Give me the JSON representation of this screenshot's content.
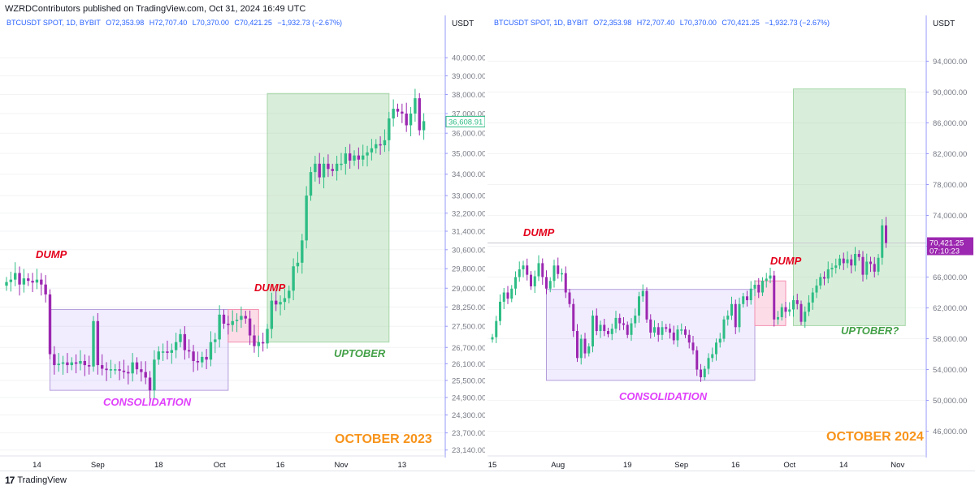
{
  "header": {
    "published": "WZRDContributors published on TradingView.com, Oct 31, 2024 16:49 UTC"
  },
  "footer": {
    "brand": "TradingView",
    "logo_mark": "17"
  },
  "colors": {
    "up": "#22ab94",
    "up_candle": "#2ebd85",
    "down": "#9c27b0",
    "purple_label": "#e040fb",
    "red_label": "#e3001b",
    "green_label": "#43a047",
    "orange_label": "#f7931a",
    "axis_text": "#787b86",
    "ticker_text": "#2962ff"
  },
  "chart_data": [
    {
      "type": "candlestick",
      "symbol_line": "BTCUSDT SPOT, 1D, BYBIT",
      "ohlc": {
        "o": "O72,353.98",
        "h": "H72,707.40",
        "l": "L70,370.00",
        "c": "C70,421.25",
        "chg": "−1,932.73 (−2.67%)"
      },
      "unit": "USDT",
      "y_ticks": [
        "40,000.00",
        "39,000.00",
        "38,000.00",
        "37,000.00",
        "36,000.00",
        "35,000.00",
        "34,000.00",
        "33,000.00",
        "32,200.00",
        "31,400.00",
        "30,600.00",
        "29,800.00",
        "29,000.00",
        "28,250.00",
        "27,500.00",
        "26,700.00",
        "26,100.00",
        "25,500.00",
        "24,900.00",
        "24,300.00",
        "23,700.00",
        "23,140.00"
      ],
      "y_tick_values": [
        40000,
        39000,
        38000,
        37000,
        36000,
        35000,
        34000,
        33000,
        32200,
        31400,
        30600,
        29800,
        29000,
        28250,
        27500,
        26700,
        26100,
        25500,
        24900,
        24300,
        23700,
        23140
      ],
      "ylim": [
        22950,
        41200
      ],
      "scale": "log",
      "x_ticks": [
        "14",
        "Sep",
        "18",
        "Oct",
        "16",
        "Nov",
        "13"
      ],
      "x_tick_index": [
        7,
        21,
        35,
        49,
        63,
        77,
        91
      ],
      "n_bars": 97,
      "last_price": "36,608.91",
      "last_value": 36608.91,
      "closes": [
        29250,
        29350,
        29620,
        29150,
        29400,
        29300,
        29230,
        29350,
        29150,
        28750,
        26450,
        26050,
        26100,
        26150,
        26050,
        26150,
        26100,
        26200,
        26050,
        26000,
        27700,
        26050,
        25920,
        25870,
        25900,
        25900,
        25850,
        25800,
        25750,
        26150,
        25900,
        25800,
        25600,
        25150,
        26250,
        26550,
        26550,
        26500,
        26600,
        26900,
        27200,
        26600,
        26550,
        26200,
        26150,
        26350,
        26250,
        26900,
        27000,
        27950,
        27600,
        27550,
        27700,
        27750,
        27900,
        27800,
        27150,
        26750,
        26900,
        26850,
        27400,
        28500,
        28350,
        28450,
        28600,
        28900,
        29900,
        30050,
        31000,
        33000,
        34100,
        34500,
        33850,
        34500,
        34250,
        34150,
        34500,
        34500,
        35000,
        34650,
        34900,
        34700,
        34900,
        35050,
        35250,
        35450,
        35400,
        35650,
        36750,
        37250,
        37100,
        37000,
        36400,
        37000,
        37800,
        36150,
        36608.91
      ],
      "regions": [
        {
          "name": "consolidation",
          "i0": 10,
          "i1": 51,
          "v0": 28150,
          "v1": 25150
        },
        {
          "name": "dump",
          "i0": 51,
          "i1": 58,
          "v0": 28150,
          "v1": 26900
        },
        {
          "name": "uptober",
          "i0": 60,
          "i1": 88,
          "v0": 38050,
          "v1": 26900
        }
      ],
      "labels": {
        "dump1": "DUMP",
        "dump2": "DUMP",
        "consolidation": "CONSOLIDATION",
        "uptober": "UPTOBER",
        "period": "OCTOBER 2023"
      }
    },
    {
      "type": "candlestick",
      "symbol_line": "BTCUSDT SPOT, 1D, BYBIT",
      "ohlc": {
        "o": "O72,353.98",
        "h": "H72,707.40",
        "l": "L70,370.00",
        "c": "C70,421.25",
        "chg": "−1,932.73 (−2.67%)"
      },
      "unit": "USDT",
      "y_ticks": [
        "94,000.00",
        "90,000.00",
        "86,000.00",
        "82,000.00",
        "78,000.00",
        "74,000.00",
        "70,000.00",
        "66,000.00",
        "62,000.00",
        "58,000.00",
        "54,000.00",
        "50,000.00",
        "46,000.00"
      ],
      "y_tick_values": [
        94000,
        90000,
        86000,
        82000,
        78000,
        74000,
        70000,
        66000,
        62000,
        58000,
        54000,
        50000,
        46000
      ],
      "ylim": [
        42800,
        97200
      ],
      "scale": "linear",
      "x_ticks": [
        "15",
        "Aug",
        "19",
        "Sep",
        "16",
        "Oct",
        "14",
        "Nov"
      ],
      "x_tick_index": [
        0,
        17,
        35,
        49,
        63,
        77,
        91,
        105
      ],
      "n_bars": 103,
      "last_price": "70,421.25",
      "last_time": "07:10:23",
      "last_value": 70421.25,
      "closes": [
        58200,
        60300,
        62800,
        64000,
        63200,
        64500,
        66000,
        67000,
        67500,
        66300,
        64800,
        66100,
        67800,
        66000,
        64500,
        65500,
        67500,
        66400,
        66500,
        64000,
        62500,
        59000,
        55500,
        58000,
        56100,
        57000,
        61000,
        59000,
        59800,
        59000,
        58600,
        59300,
        60700,
        60000,
        59800,
        58500,
        60000,
        61000,
        63500,
        64200,
        60500,
        58800,
        59500,
        58500,
        59500,
        59300,
        58800,
        57800,
        59200,
        59200,
        58500,
        57500,
        56500,
        54000,
        53000,
        54100,
        55500,
        56000,
        57500,
        58000,
        60500,
        61000,
        62500,
        59500,
        62500,
        63500,
        63000,
        64500,
        65000,
        64000,
        65500,
        65800,
        66200,
        60500,
        60800,
        62100,
        61500,
        61800,
        63000,
        62500,
        60200,
        61500,
        62700,
        64000,
        64900,
        66000,
        65800,
        67000,
        67200,
        67500,
        68400,
        67800,
        68300,
        67500,
        69000,
        68600,
        66300,
        68000,
        67700,
        66700,
        68500,
        72700,
        70421.25
      ],
      "regions": [
        {
          "name": "consolidation",
          "i0": 14,
          "i1": 68,
          "v0": 64400,
          "v1": 52600
        },
        {
          "name": "dump",
          "i0": 68,
          "i1": 76,
          "v0": 65500,
          "v1": 59700
        },
        {
          "name": "uptober",
          "i0": 78,
          "i1": 107,
          "v0": 90400,
          "v1": 59700
        }
      ],
      "labels": {
        "dump1": "DUMP",
        "dump2": "DUMP",
        "consolidation": "CONSOLIDATION",
        "uptober": "UPTOBER?",
        "period": "OCTOBER 2024"
      }
    }
  ]
}
